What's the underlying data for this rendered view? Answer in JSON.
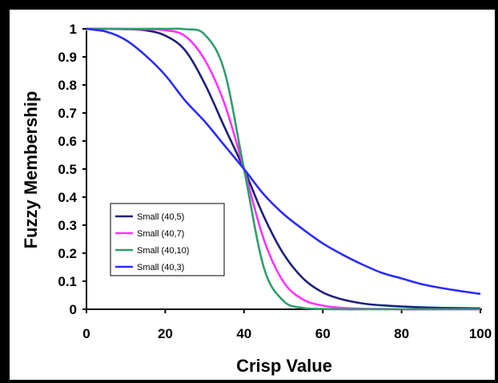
{
  "chart_data": {
    "type": "line",
    "xlabel": "Crisp Value",
    "ylabel": "Fuzzy Membership",
    "xlim": [
      0,
      100
    ],
    "ylim": [
      0,
      1
    ],
    "x_ticks": [
      "0",
      "20",
      "40",
      "60",
      "80",
      "100"
    ],
    "y_ticks": [
      "0",
      "0.1",
      "0.2",
      "0.3",
      "0.4",
      "0.5",
      "0.6",
      "0.7",
      "0.8",
      "0.9",
      "1"
    ],
    "grid": false,
    "legend_position": "lower-left",
    "x": [
      0,
      5,
      10,
      15,
      20,
      25,
      30,
      35,
      40,
      45,
      50,
      55,
      60,
      65,
      70,
      75,
      80,
      85,
      90,
      95,
      100
    ],
    "series": [
      {
        "name": "Small (40,5)",
        "color": "#1f1f7a",
        "values": [
          1.0,
          1.0,
          0.999,
          0.995,
          0.976,
          0.924,
          0.805,
          0.651,
          0.5,
          0.332,
          0.198,
          0.11,
          0.06,
          0.035,
          0.021,
          0.014,
          0.01,
          0.007,
          0.005,
          0.004,
          0.003
        ]
      },
      {
        "name": "Small (40,7)",
        "color": "#ff33ff",
        "values": [
          1.0,
          1.0,
          1.0,
          0.999,
          0.995,
          0.975,
          0.89,
          0.735,
          0.5,
          0.25,
          0.098,
          0.035,
          0.013,
          0.005,
          0.002,
          0.001,
          0.0,
          0.0,
          0.0,
          0.0,
          0.0
        ]
      },
      {
        "name": "Small (40,10)",
        "color": "#2e9e6b",
        "values": [
          1.0,
          1.0,
          1.0,
          1.0,
          1.0,
          0.999,
          0.98,
          0.85,
          0.5,
          0.15,
          0.03,
          0.005,
          0.001,
          0.0,
          0.0,
          0.0,
          0.0,
          0.0,
          0.0,
          0.0,
          0.0
        ]
      },
      {
        "name": "Small (40,3)",
        "color": "#2b2bff",
        "values": [
          1.0,
          0.99,
          0.96,
          0.905,
          0.835,
          0.745,
          0.67,
          0.585,
          0.5,
          0.41,
          0.34,
          0.285,
          0.235,
          0.195,
          0.16,
          0.13,
          0.11,
          0.09,
          0.076,
          0.065,
          0.055
        ]
      }
    ]
  }
}
